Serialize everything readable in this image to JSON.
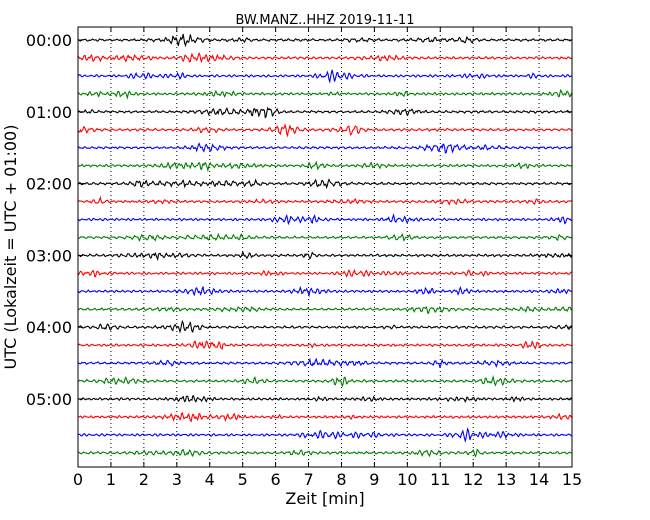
{
  "chart_data": {
    "type": "line",
    "title": "BW.MANZ..HHZ 2019-11-11",
    "xlabel": "Zeit  [min]",
    "ylabel": "UTC (Lokalzeit = UTC + 01:00)",
    "xlim": [
      0,
      15
    ],
    "x_ticks": [
      "0",
      "1",
      "2",
      "3",
      "4",
      "5",
      "6",
      "7",
      "8",
      "9",
      "10",
      "11",
      "12",
      "13",
      "14",
      "15"
    ],
    "y_tick_labels": [
      "00:00",
      "01:00",
      "02:00",
      "03:00",
      "04:00",
      "05:00"
    ],
    "traces_per_hour": 4,
    "trace_count": 24,
    "trace_colors": [
      "#000000",
      "#ff0000",
      "#0000ff",
      "#007f00"
    ],
    "vertical_grid": "dotted",
    "legend": "none"
  }
}
